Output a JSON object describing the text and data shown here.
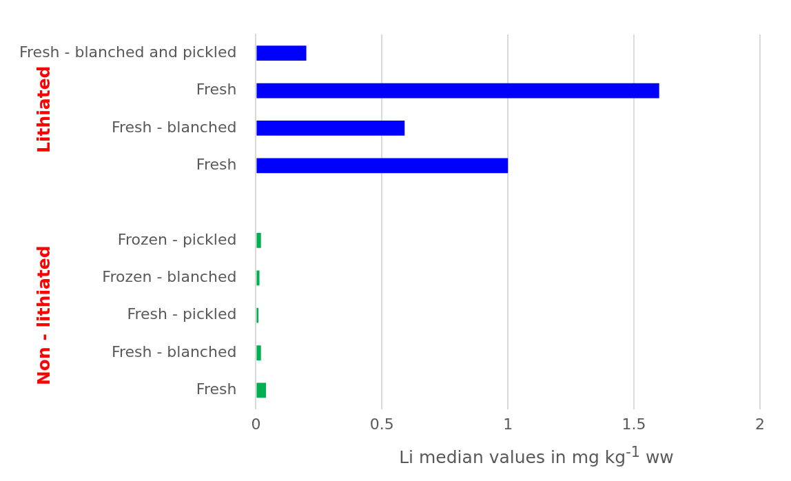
{
  "chart_data": {
    "type": "bar",
    "orientation": "horizontal",
    "xlabel": "Li median values in mg kg$^{-1}$ ww",
    "categories": [
      "Fresh - blanched and pickled",
      "Fresh",
      "Fresh - blanched",
      "Fresh",
      null,
      "Frozen - pickled",
      "Frozen - blanched",
      "Fresh - pickled",
      "Fresh - blanched",
      "Fresh"
    ],
    "values": [
      0.2,
      1.6,
      0.59,
      1.0,
      null,
      0.02,
      0.014,
      0.01,
      0.02,
      0.04
    ],
    "colors": [
      "#0000ff",
      "#0000ff",
      "#0000ff",
      "#0000ff",
      "#0000ff",
      "#00b050",
      "#00b050",
      "#00b050",
      "#00b050",
      "#00b050"
    ],
    "xlim": [
      0,
      2
    ],
    "xticks": [
      0,
      0.5,
      1,
      1.5,
      2
    ],
    "grid": "x",
    "annotations": [
      "Lithiated",
      "Non - lithiated"
    ]
  }
}
